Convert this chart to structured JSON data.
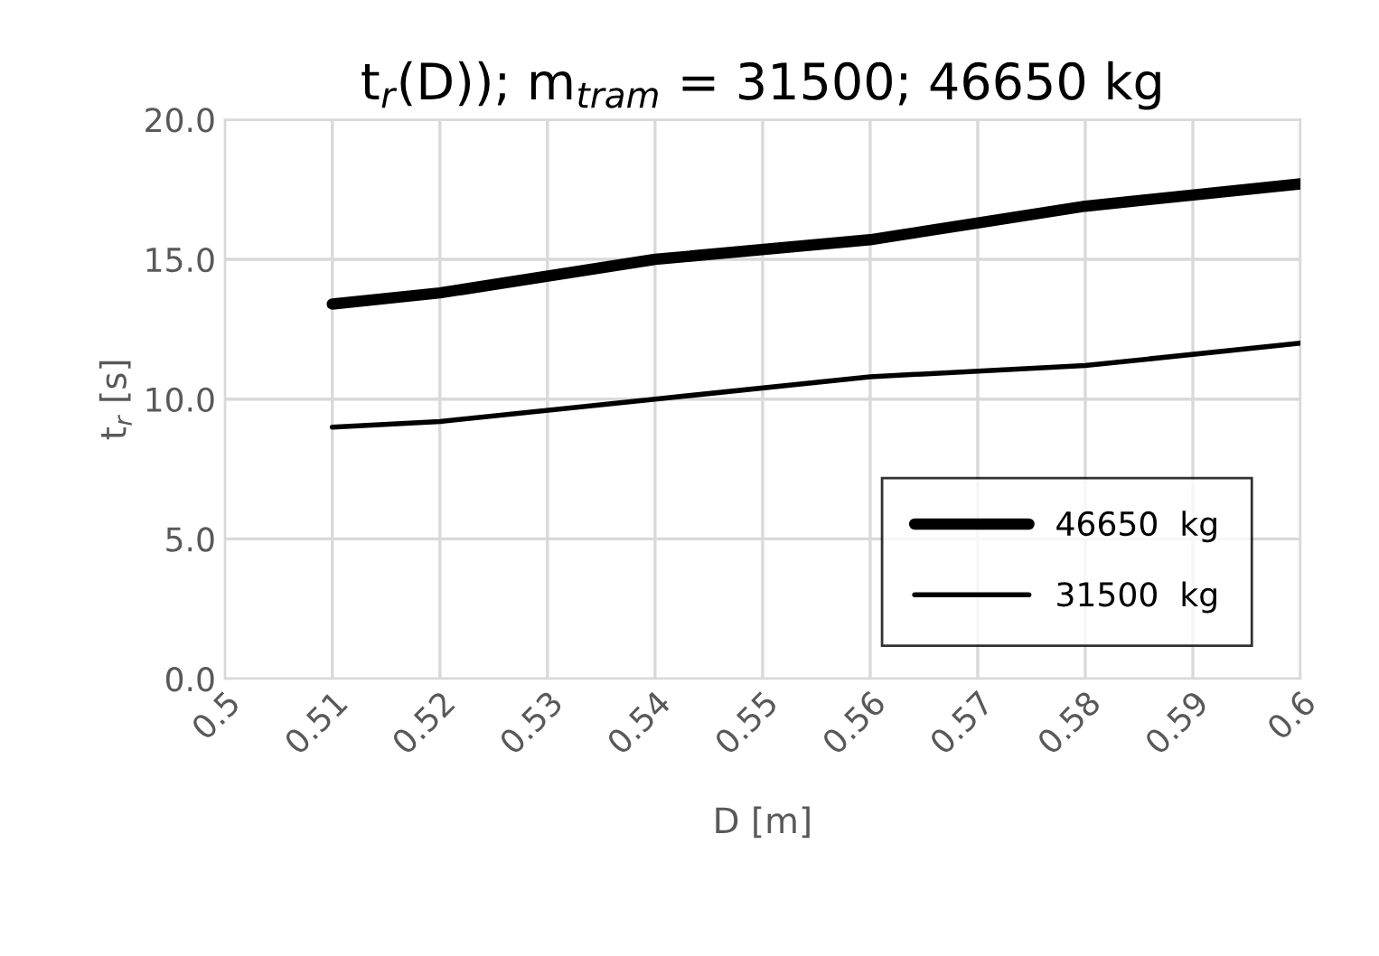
{
  "chart_data": {
    "type": "line",
    "title": "t$_{r}$(D)); m$_{tram}$ = 31500; 46650 kg",
    "xlabel": "D [m]",
    "ylabel": "t$_{r}$ [s]",
    "series": [
      {
        "name": "46650  kg",
        "color": "#000000",
        "x": [
          0.51,
          0.52,
          0.54,
          0.56,
          0.58,
          0.6
        ],
        "values": [
          13.4,
          13.8,
          15.0,
          15.7,
          16.9,
          17.7
        ]
      },
      {
        "name": "31500  kg",
        "color": "#000000",
        "x": [
          0.51,
          0.52,
          0.54,
          0.56,
          0.58,
          0.6
        ],
        "values": [
          9.0,
          9.2,
          10.0,
          10.8,
          11.2,
          12.0
        ]
      }
    ],
    "xlim": [
      0.5,
      0.6
    ],
    "xticks": [
      0.5,
      0.51,
      0.52,
      0.53,
      0.54,
      0.55,
      0.56,
      0.57,
      0.58,
      0.59,
      0.6
    ],
    "ylim": [
      0,
      20
    ],
    "yticks": [
      {
        "value": 0,
        "label": "0.0"
      },
      {
        "value": 5,
        "label": "5.0"
      },
      {
        "value": 10,
        "label": "10.0"
      },
      {
        "value": 15,
        "label": "15.0"
      },
      {
        "value": 20,
        "label": "20.0"
      }
    ],
    "grid": true,
    "legend": "bottom right",
    "marker": "none",
    "line_style": "solid"
  }
}
